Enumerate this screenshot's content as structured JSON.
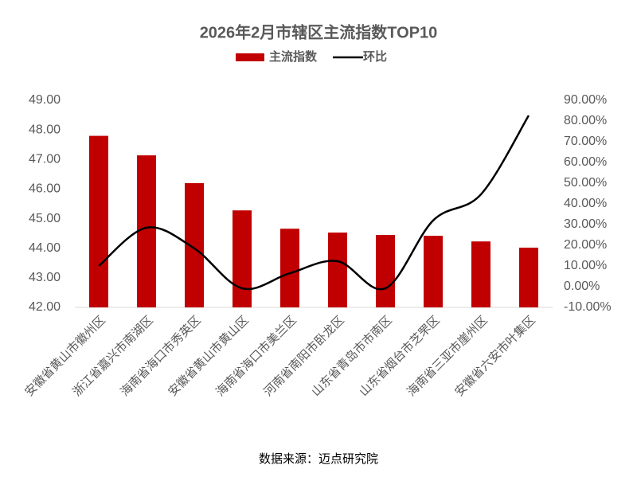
{
  "chart_data": {
    "type": "bar_line",
    "title": "2026年2月市辖区主流指数TOP10",
    "source": "数据来源：迈点研究院",
    "categories": [
      "安徽省黄山市徽州区",
      "浙江省嘉兴市南湖区",
      "海南省海口市秀英区",
      "安徽省黄山市黄山区",
      "海南省海口市美兰区",
      "河南省南阳市卧龙区",
      "山东省青岛市市南区",
      "山东省烟台市芝罘区",
      "海南省三亚市崖州区",
      "安徽省六安市叶集区"
    ],
    "series": [
      {
        "name": "主流指数",
        "color": "#c00000",
        "values": [
          47.8,
          47.14,
          46.2,
          45.28,
          44.66,
          44.53,
          44.45,
          44.42,
          44.23,
          44.02
        ]
      },
      {
        "name": "环比",
        "color": "#000000",
        "axis": "y2",
        "values": [
          10,
          28.5,
          18.5,
          -0.8,
          6.5,
          12.3,
          -0.8,
          32,
          44.6,
          82.7
        ]
      }
    ],
    "ylim": [
      42,
      49
    ],
    "yticks": [
      {
        "value": 42,
        "label": "42.00"
      },
      {
        "value": 43,
        "label": "43.00"
      },
      {
        "value": 44,
        "label": "44.00"
      },
      {
        "value": 45,
        "label": "45.00"
      },
      {
        "value": 46,
        "label": "46.00"
      },
      {
        "value": 47,
        "label": "47.00"
      },
      {
        "value": 48,
        "label": "48.00"
      },
      {
        "value": 49,
        "label": "49.00"
      }
    ],
    "y2lim": [
      -10,
      90
    ],
    "y2ticks": [
      {
        "value": -10,
        "label": "-10.00%"
      },
      {
        "value": 0,
        "label": "0.00%"
      },
      {
        "value": 10,
        "label": "10.00%"
      },
      {
        "value": 20,
        "label": "20.00%"
      },
      {
        "value": 30,
        "label": "30.00%"
      },
      {
        "value": 40,
        "label": "40.00%"
      },
      {
        "value": 50,
        "label": "50.00%"
      },
      {
        "value": 60,
        "label": "60.00%"
      },
      {
        "value": 70,
        "label": "70.00%"
      },
      {
        "value": 80,
        "label": "80.00%"
      },
      {
        "value": 90,
        "label": "90.00%"
      }
    ],
    "grid": false
  }
}
